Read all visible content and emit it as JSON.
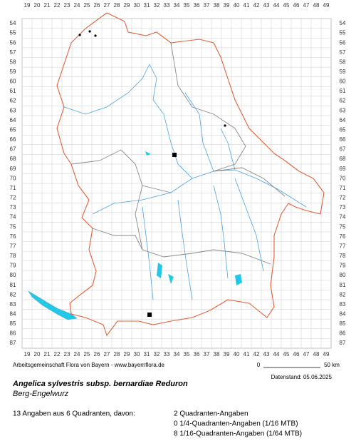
{
  "map": {
    "columns": [
      19,
      20,
      21,
      22,
      23,
      24,
      25,
      26,
      27,
      28,
      29,
      30,
      31,
      32,
      33,
      34,
      35,
      36,
      37,
      38,
      39,
      40,
      41,
      42,
      43,
      44,
      45,
      46,
      47,
      48,
      49
    ],
    "rows": [
      54,
      55,
      56,
      57,
      58,
      59,
      60,
      61,
      62,
      63,
      64,
      65,
      66,
      67,
      68,
      69,
      70,
      71,
      72,
      73,
      74,
      75,
      76,
      77,
      78,
      79,
      80,
      81,
      82,
      83,
      84,
      85,
      86,
      87
    ],
    "markers": [
      {
        "col": 24.29,
        "row": 55.18,
        "kind": "dot"
      },
      {
        "col": 25.29,
        "row": 54.81,
        "kind": "dot"
      },
      {
        "col": 25.86,
        "row": 55.25,
        "kind": "dot"
      },
      {
        "col": 38.86,
        "row": 64.53,
        "kind": "dot"
      },
      {
        "col": 33.79,
        "row": 67.55,
        "kind": "square"
      },
      {
        "col": 31.29,
        "row": 84.04,
        "kind": "square"
      }
    ]
  },
  "footer": {
    "credit": "Arbeitsgemeinschaft Flora von Bayern - www.bayernflora.de",
    "scale_start": "0",
    "scale_end": "50 km",
    "date": "Datenstand: 05.06.2025"
  },
  "title": "Angelica sylvestris subsp. bernardiae Reduron",
  "subtitle": "Berg-Engelwurz",
  "summary": "13 Angaben aus 6 Quadranten, davon:",
  "counts": [
    "2 Quadranten-Angaben",
    "0 1/4-Quadranten-Angaben (1/16 MTB)",
    "8 1/16-Quadranten-Angaben (1/64 MTB)"
  ]
}
